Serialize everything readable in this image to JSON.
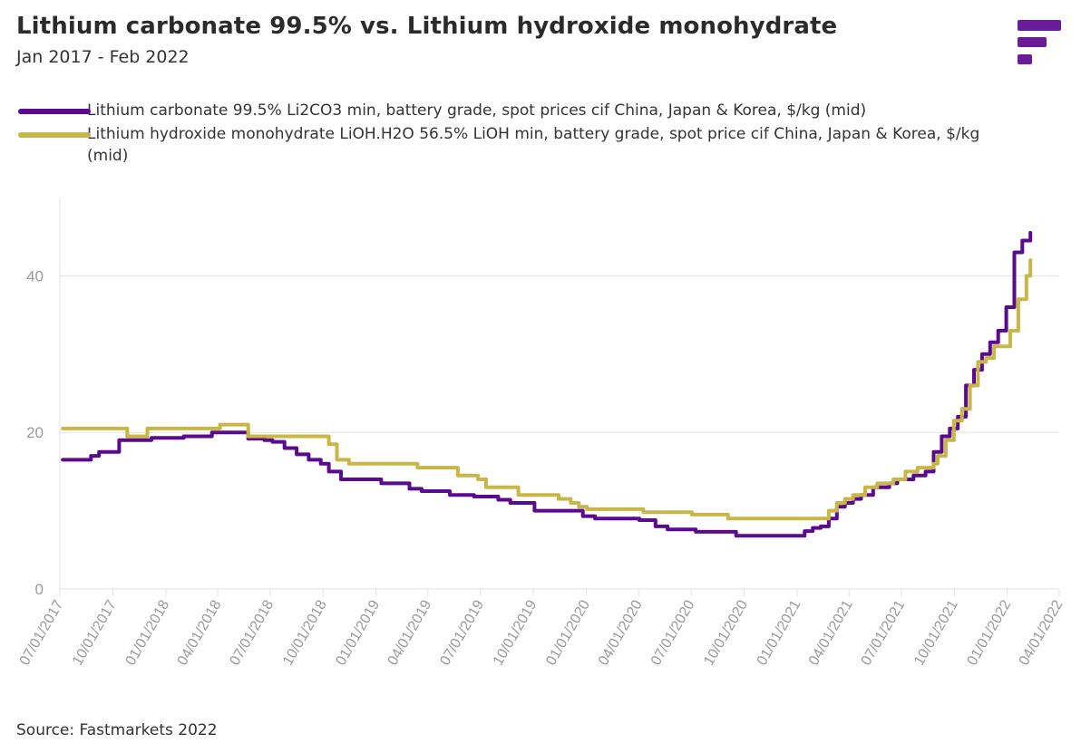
{
  "header": {
    "title": "Lithium carbonate 99.5% vs. Lithium hydroxide monohydrate",
    "subtitle": "Jan 2017 - Feb 2022",
    "logo_icon": "fastmarkets-logo-icon"
  },
  "colors": {
    "carbonate": "#5b0a8e",
    "hydroxide": "#c8b648",
    "grid": "#e3e3e3",
    "axis_text": "#9a9a9a",
    "logo": "#6a1b9a"
  },
  "legend": [
    {
      "label": "Lithium carbonate 99.5% Li2CO3 min, battery grade, spot prices cif China, Japan & Korea, $/kg (mid)",
      "color": "#5b0a8e"
    },
    {
      "label": "Lithium hydroxide monohydrate LiOH.H2O 56.5% LiOH min, battery grade, spot price cif China, Japan & Korea, $/kg (mid)",
      "color": "#c8b648"
    }
  ],
  "footer": {
    "source": "Source: Fastmarkets 2022"
  },
  "chart_data": {
    "type": "line",
    "title": "Lithium carbonate 99.5% vs. Lithium hydroxide monohydrate",
    "subtitle": "Jan 2017 - Feb 2022",
    "xlabel": "",
    "ylabel": "",
    "ylim": [
      0,
      50
    ],
    "yticks": [
      0,
      20,
      40
    ],
    "xlim": [
      "2017-07-01",
      "2022-04-01"
    ],
    "xticks": [
      "07/01/2017",
      "10/01/2017",
      "01/01/2018",
      "04/01/2018",
      "07/01/2018",
      "10/01/2018",
      "01/01/2019",
      "04/01/2019",
      "07/01/2019",
      "10/01/2019",
      "01/01/2020",
      "04/01/2020",
      "07/01/2020",
      "10/01/2020",
      "01/01/2021",
      "04/01/2021",
      "07/01/2021",
      "10/01/2021",
      "01/01/2022",
      "04/01/2022"
    ],
    "grid": true,
    "legend_position": "top-left",
    "series": [
      {
        "name": "Lithium carbonate 99.5% Li2CO3 min, battery grade, spot prices cif China, Japan & Korea, $/kg (mid)",
        "color": "#5b0a8e",
        "points": [
          [
            "2017-07-06",
            16.5
          ],
          [
            "2017-08-10",
            16.5
          ],
          [
            "2017-08-24",
            17.0
          ],
          [
            "2017-09-07",
            17.5
          ],
          [
            "2017-10-05",
            17.5
          ],
          [
            "2017-10-12",
            19.0
          ],
          [
            "2017-11-23",
            19.0
          ],
          [
            "2017-12-07",
            19.3
          ],
          [
            "2018-01-18",
            19.3
          ],
          [
            "2018-02-01",
            19.5
          ],
          [
            "2018-03-08",
            19.5
          ],
          [
            "2018-03-22",
            20.0
          ],
          [
            "2018-05-10",
            20.0
          ],
          [
            "2018-05-24",
            19.2
          ],
          [
            "2018-06-21",
            19.0
          ],
          [
            "2018-07-05",
            18.8
          ],
          [
            "2018-07-26",
            18.0
          ],
          [
            "2018-08-16",
            17.2
          ],
          [
            "2018-09-06",
            16.5
          ],
          [
            "2018-09-27",
            16.0
          ],
          [
            "2018-10-11",
            15.0
          ],
          [
            "2018-11-01",
            14.0
          ],
          [
            "2018-12-27",
            14.0
          ],
          [
            "2019-01-10",
            13.5
          ],
          [
            "2019-02-14",
            13.5
          ],
          [
            "2019-02-28",
            12.8
          ],
          [
            "2019-03-21",
            12.5
          ],
          [
            "2019-04-25",
            12.5
          ],
          [
            "2019-05-09",
            12.0
          ],
          [
            "2019-06-06",
            12.0
          ],
          [
            "2019-06-20",
            11.8
          ],
          [
            "2019-07-18",
            11.8
          ],
          [
            "2019-08-01",
            11.4
          ],
          [
            "2019-08-22",
            11.0
          ],
          [
            "2019-09-26",
            11.0
          ],
          [
            "2019-10-03",
            10.0
          ],
          [
            "2019-12-12",
            10.0
          ],
          [
            "2019-12-26",
            9.3
          ],
          [
            "2020-01-16",
            9.0
          ],
          [
            "2020-03-26",
            9.0
          ],
          [
            "2020-04-02",
            8.8
          ],
          [
            "2020-04-23",
            8.8
          ],
          [
            "2020-04-30",
            8.0
          ],
          [
            "2020-05-21",
            7.6
          ],
          [
            "2020-07-02",
            7.6
          ],
          [
            "2020-07-09",
            7.3
          ],
          [
            "2020-09-10",
            7.3
          ],
          [
            "2020-09-17",
            6.8
          ],
          [
            "2020-12-31",
            6.8
          ],
          [
            "2021-01-14",
            7.4
          ],
          [
            "2021-01-28",
            7.8
          ],
          [
            "2021-02-11",
            8.0
          ],
          [
            "2021-02-25",
            9.0
          ],
          [
            "2021-03-11",
            10.5
          ],
          [
            "2021-03-25",
            11.0
          ],
          [
            "2021-04-08",
            11.5
          ],
          [
            "2021-04-22",
            12.0
          ],
          [
            "2021-05-13",
            13.0
          ],
          [
            "2021-06-10",
            13.5
          ],
          [
            "2021-06-24",
            14.0
          ],
          [
            "2021-07-22",
            14.5
          ],
          [
            "2021-08-12",
            15.0
          ],
          [
            "2021-08-26",
            17.5
          ],
          [
            "2021-09-09",
            19.5
          ],
          [
            "2021-09-23",
            20.5
          ],
          [
            "2021-10-07",
            22.0
          ],
          [
            "2021-10-21",
            26.0
          ],
          [
            "2021-11-04",
            28.0
          ],
          [
            "2021-11-18",
            30.0
          ],
          [
            "2021-12-02",
            31.5
          ],
          [
            "2021-12-16",
            33.0
          ],
          [
            "2021-12-30",
            36.0
          ],
          [
            "2022-01-13",
            43.0
          ],
          [
            "2022-01-27",
            44.5
          ],
          [
            "2022-02-10",
            45.5
          ]
        ]
      },
      {
        "name": "Lithium hydroxide monohydrate LiOH.H2O 56.5% LiOH min, battery grade, spot price cif China, Japan & Korea, $/kg (mid)",
        "color": "#c8b648",
        "points": [
          [
            "2017-07-06",
            20.5
          ],
          [
            "2017-10-12",
            20.5
          ],
          [
            "2017-10-26",
            19.5
          ],
          [
            "2017-11-23",
            19.5
          ],
          [
            "2017-11-30",
            20.5
          ],
          [
            "2018-03-29",
            20.5
          ],
          [
            "2018-04-05",
            21.0
          ],
          [
            "2018-05-17",
            21.0
          ],
          [
            "2018-05-24",
            19.5
          ],
          [
            "2018-09-27",
            19.5
          ],
          [
            "2018-10-11",
            18.5
          ],
          [
            "2018-10-25",
            16.5
          ],
          [
            "2018-11-15",
            16.0
          ],
          [
            "2019-02-28",
            16.0
          ],
          [
            "2019-03-14",
            15.5
          ],
          [
            "2019-05-16",
            15.5
          ],
          [
            "2019-05-23",
            14.5
          ],
          [
            "2019-06-27",
            14.0
          ],
          [
            "2019-07-11",
            13.0
          ],
          [
            "2019-08-29",
            13.0
          ],
          [
            "2019-09-05",
            12.0
          ],
          [
            "2019-10-31",
            12.0
          ],
          [
            "2019-11-14",
            11.5
          ],
          [
            "2019-12-05",
            11.0
          ],
          [
            "2019-12-19",
            10.5
          ],
          [
            "2020-01-02",
            10.2
          ],
          [
            "2020-04-02",
            10.2
          ],
          [
            "2020-04-09",
            9.8
          ],
          [
            "2020-06-25",
            9.8
          ],
          [
            "2020-07-02",
            9.5
          ],
          [
            "2020-08-27",
            9.5
          ],
          [
            "2020-09-03",
            9.0
          ],
          [
            "2021-02-11",
            9.0
          ],
          [
            "2021-02-25",
            10.0
          ],
          [
            "2021-03-11",
            11.0
          ],
          [
            "2021-03-25",
            11.5
          ],
          [
            "2021-04-08",
            12.0
          ],
          [
            "2021-04-29",
            13.0
          ],
          [
            "2021-05-20",
            13.5
          ],
          [
            "2021-06-03",
            13.5
          ],
          [
            "2021-06-17",
            14.0
          ],
          [
            "2021-07-08",
            15.0
          ],
          [
            "2021-07-29",
            15.5
          ],
          [
            "2021-08-26",
            16.0
          ],
          [
            "2021-09-02",
            17.0
          ],
          [
            "2021-09-16",
            19.0
          ],
          [
            "2021-09-30",
            21.5
          ],
          [
            "2021-10-14",
            23.0
          ],
          [
            "2021-10-28",
            26.0
          ],
          [
            "2021-11-11",
            29.0
          ],
          [
            "2021-11-25",
            29.5
          ],
          [
            "2021-12-09",
            31.0
          ],
          [
            "2021-12-30",
            31.0
          ],
          [
            "2022-01-06",
            33.0
          ],
          [
            "2022-01-20",
            37.0
          ],
          [
            "2022-02-03",
            40.0
          ],
          [
            "2022-02-10",
            42.0
          ]
        ]
      }
    ]
  }
}
